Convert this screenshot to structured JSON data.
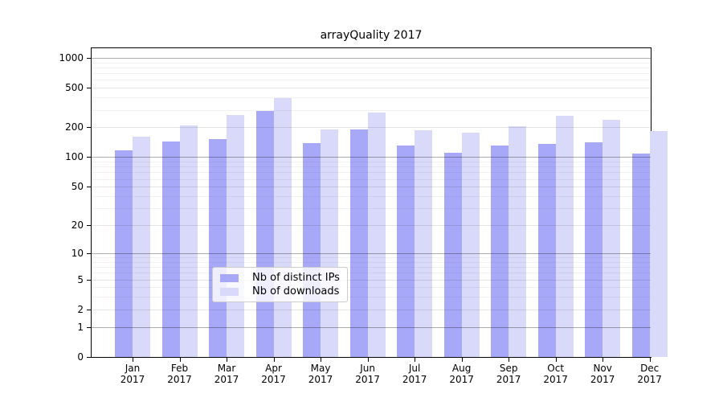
{
  "figure_title": "arrayQuality 2017",
  "chart_data": {
    "type": "bar",
    "title": "arrayQuality 2017",
    "categories": [
      "Jan 2017",
      "Feb 2017",
      "Mar 2017",
      "Apr 2017",
      "May 2017",
      "Jun 2017",
      "Jul 2017",
      "Aug 2017",
      "Sep 2017",
      "Oct 2017",
      "Nov 2017",
      "Dec 2017"
    ],
    "x_tick_months": [
      "Jan",
      "Feb",
      "Mar",
      "Apr",
      "May",
      "Jun",
      "Jul",
      "Aug",
      "Sep",
      "Oct",
      "Nov",
      "Dec"
    ],
    "x_tick_year": "2017",
    "series": [
      {
        "name": "Nb of distinct IPs",
        "color": "#a8a8f8",
        "values": [
          118,
          145,
          151,
          291,
          139,
          192,
          131,
          110,
          130,
          135,
          140,
          109
        ]
      },
      {
        "name": "Nb of downloads",
        "color": "#d9d9f9",
        "values": [
          162,
          210,
          265,
          395,
          191,
          284,
          188,
          177,
          204,
          260,
          238,
          185
        ]
      }
    ],
    "xlabel": "",
    "ylabel": "",
    "yscale": "log10(1+x)",
    "y_ticks": [
      0,
      1,
      2,
      5,
      10,
      20,
      50,
      100,
      200,
      500,
      1000
    ],
    "y_grid_sub": [
      2,
      5,
      20,
      50,
      200,
      500
    ],
    "y_grid_major": [
      1,
      10,
      100,
      1000
    ],
    "y_grid_minor": [
      3,
      4,
      6,
      7,
      8,
      9,
      30,
      40,
      60,
      70,
      80,
      90,
      300,
      400,
      600,
      700,
      800,
      900
    ],
    "ylim": [
      0,
      1250
    ],
    "grid": true,
    "legend_position": "inside-bottom-center"
  },
  "legend": {
    "items": [
      {
        "label": "Nb of distinct IPs",
        "color": "#a8a8f8"
      },
      {
        "label": "Nb of downloads",
        "color": "#d9d9f9"
      }
    ]
  }
}
